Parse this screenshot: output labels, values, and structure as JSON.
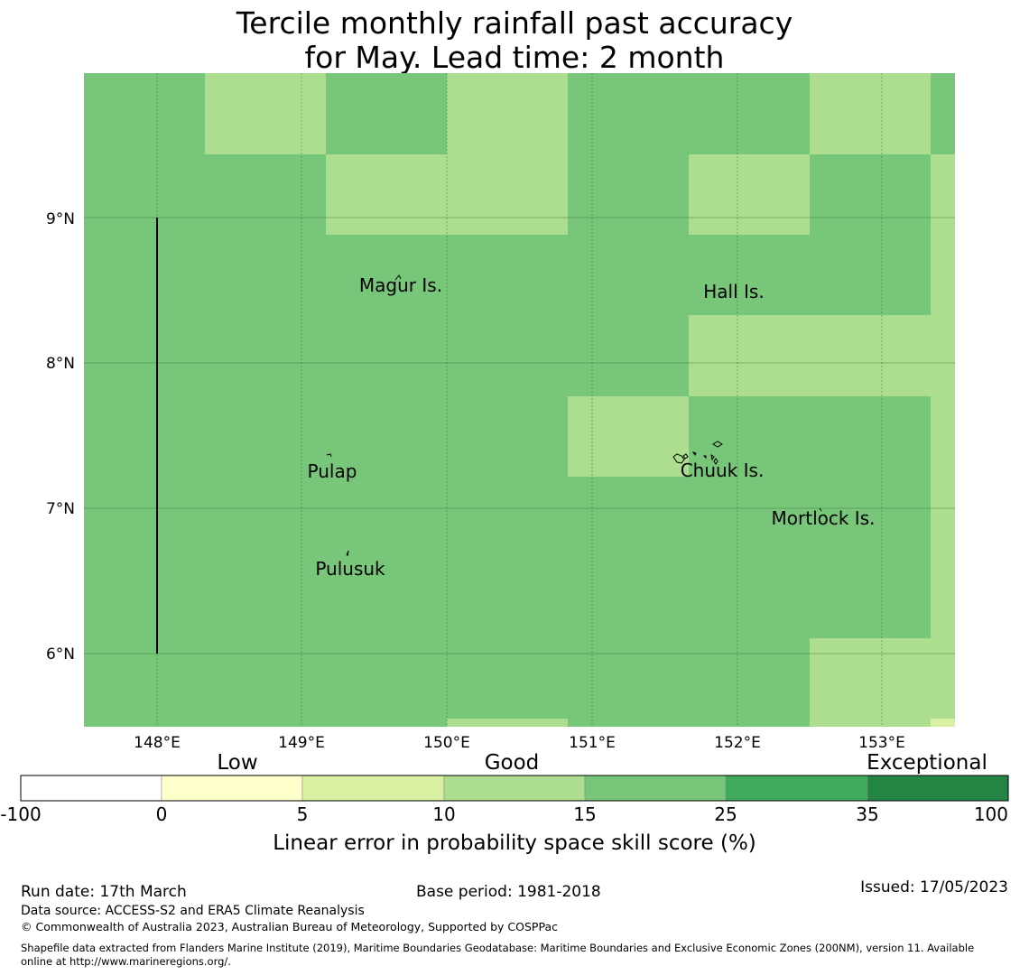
{
  "title": {
    "line1": "Tercile monthly rainfall past accuracy",
    "line2": "for May. Lead time: 2 month"
  },
  "map": {
    "lon_labels": [
      "148°E",
      "149°E",
      "150°E",
      "151°E",
      "152°E",
      "153°E"
    ],
    "lat_labels": [
      "9°N",
      "8°N",
      "7°N",
      "6°N"
    ],
    "places": [
      {
        "name": "Magur Is.",
        "label": "Magur Is."
      },
      {
        "name": "Hall Is.",
        "label": "Hall Is."
      },
      {
        "name": "Pulap",
        "label": "Pulap"
      },
      {
        "name": "Chuuk Is.",
        "label": "Chuuk Is."
      },
      {
        "name": "Mortlock Is.",
        "label": "Mortlock Is."
      },
      {
        "name": "Pulusuk",
        "label": "Pulusuk"
      }
    ],
    "cell_colors": {
      "band_15_25": "#78c679",
      "band_10_15": "#addd8e",
      "band_5_10": "#d9f0a3"
    }
  },
  "legend": {
    "categories": [
      "Low",
      "Good",
      "Exceptional"
    ],
    "ticks": [
      "-100",
      "0",
      "5",
      "10",
      "15",
      "25",
      "35",
      "100"
    ],
    "colors": [
      "#ffffff",
      "#ffffcc",
      "#d9f0a3",
      "#addd8e",
      "#78c679",
      "#41ab5d",
      "#238443"
    ],
    "label": "Linear error in probability space skill score (%)"
  },
  "footer": {
    "run_date": "Run date: 17th March",
    "base_period": "Base period: 1981-2018",
    "issued": "Issued: 17/05/2023",
    "data_source": "Data source: ACCESS-S2 and ERA5 Climate Reanalysis",
    "copyright": "© Commonwealth of Australia 2023, Australian Bureau of Meteorology, Supported by COSPPac",
    "shapefile_line1": "Shapefile data extracted from Flanders Marine Institute (2019), Maritime Boundaries Geodatabase: Maritime Boundaries and Exclusive Economic Zones (200NM), version 11. Available",
    "shapefile_line2": "online at http://www.marineregions.org/."
  }
}
